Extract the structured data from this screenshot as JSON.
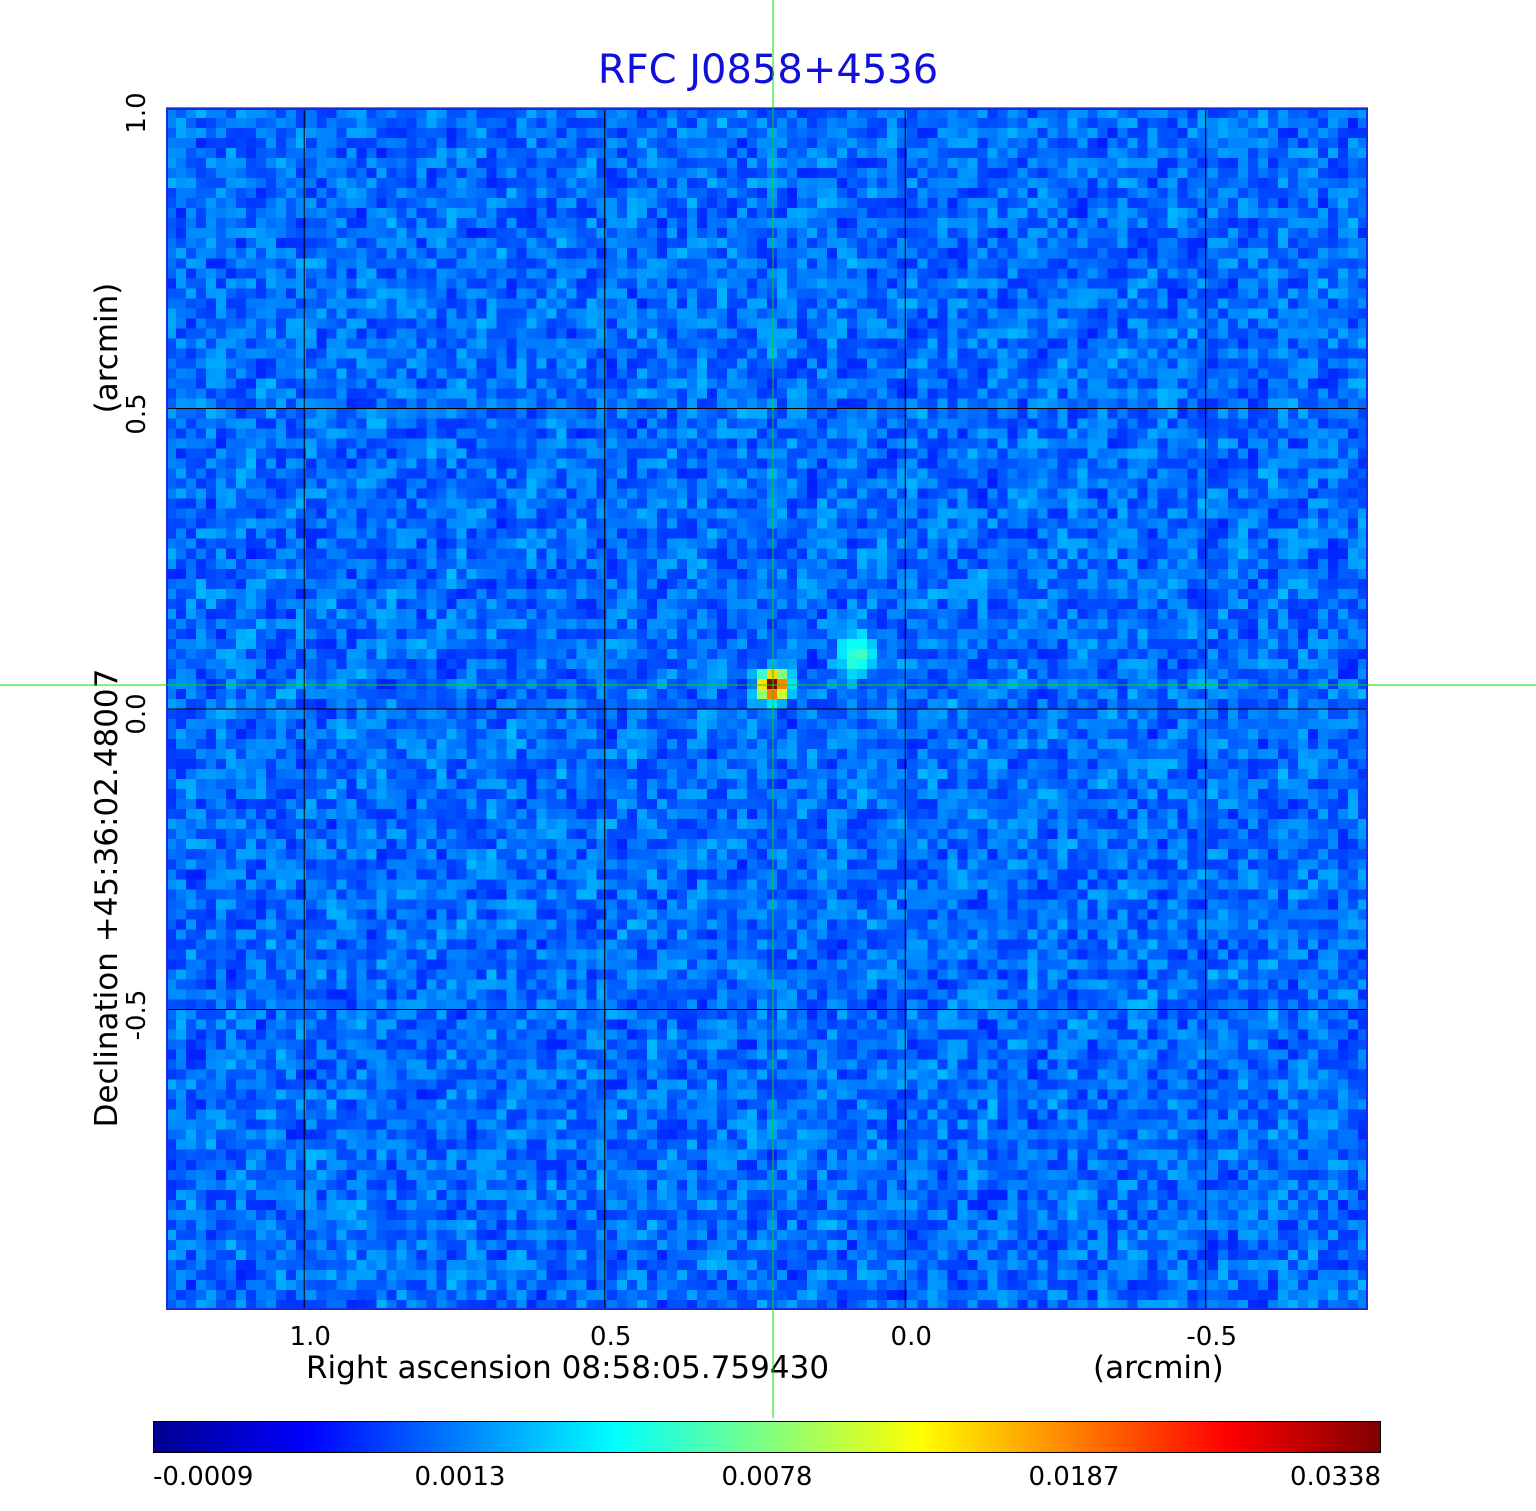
{
  "chart_data": {
    "type": "heatmap",
    "title": "RFC J0858+4536",
    "xlabel": "Right ascension  08:58:05.759430",
    "xunit": "(arcmin)",
    "ylabel": "Declination  +45:36:02.48007",
    "yunit": "(arcmin)",
    "x_ticks": [
      "1.0",
      "0.5",
      "0.0",
      "-0.5"
    ],
    "x_tick_values": [
      1.0,
      0.5,
      0.0,
      -0.5
    ],
    "y_ticks": [
      "1.0",
      "0.5",
      "0.0",
      "-0.5"
    ],
    "y_tick_values": [
      1.0,
      0.5,
      0.0,
      -0.5
    ],
    "xlim": [
      1.23,
      -0.77
    ],
    "ylim": [
      -1.0,
      1.0
    ],
    "grid": true,
    "colormap": "jet",
    "colorbar_ticks": [
      "-0.0009",
      "0.0013",
      "0.0078",
      "0.0187",
      "0.0338"
    ],
    "background_level": 0.0002,
    "peak": {
      "x": 0.22,
      "y": 0.04,
      "value": 0.0338
    },
    "secondary_peak": {
      "x": 0.08,
      "y": 0.09,
      "value": 0.004
    },
    "crosshair": {
      "x": 0.22,
      "y": 0.04,
      "color": "#00e000"
    }
  }
}
